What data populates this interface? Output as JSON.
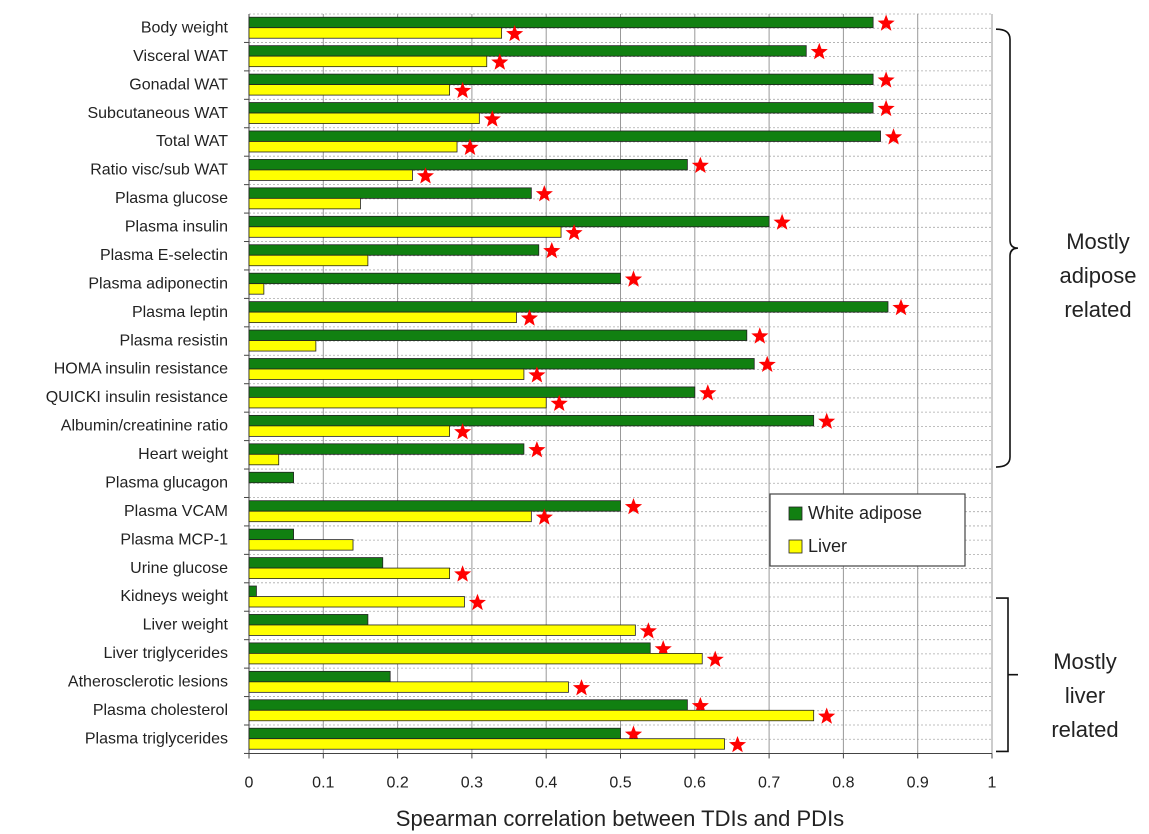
{
  "chart_data": {
    "type": "hbar",
    "xlabel": "Spearman correlation between TDIs and PDIs",
    "categories": [
      "Body weight",
      "Visceral WAT",
      "Gonadal WAT",
      "Subcutaneous WAT",
      "Total WAT",
      "Ratio visc/sub WAT",
      "Plasma glucose",
      "Plasma insulin",
      "Plasma E-selectin",
      "Plasma adiponectin",
      "Plasma leptin",
      "Plasma resistin",
      "HOMA insulin resistance",
      "QUICKI insulin resistance",
      "Albumin/creatinine ratio",
      "Heart weight",
      "Plasma glucagon",
      "Plasma VCAM",
      "Plasma MCP-1",
      "Urine glucose",
      "Kidneys weight",
      "Liver weight",
      "Liver triglycerides",
      "Atherosclerotic lesions",
      "Plasma cholesterol",
      "Plasma triglycerides"
    ],
    "series": [
      {
        "name": "White adipose",
        "color": "#118011",
        "values": [
          0.84,
          0.75,
          0.84,
          0.84,
          0.85,
          0.59,
          0.38,
          0.7,
          0.39,
          0.5,
          0.86,
          0.67,
          0.68,
          0.6,
          0.76,
          0.37,
          0.06,
          0.5,
          0.06,
          0.18,
          0.01,
          0.16,
          0.54,
          0.19,
          0.59,
          0.5
        ],
        "stars": [
          true,
          true,
          true,
          true,
          true,
          true,
          true,
          true,
          true,
          true,
          true,
          true,
          true,
          true,
          true,
          true,
          false,
          true,
          false,
          false,
          false,
          false,
          true,
          false,
          true,
          true
        ]
      },
      {
        "name": "Liver",
        "color": "#ffff00",
        "values": [
          0.34,
          0.32,
          0.27,
          0.31,
          0.28,
          0.22,
          0.15,
          0.42,
          0.16,
          0.02,
          0.36,
          0.09,
          0.37,
          0.4,
          0.27,
          0.04,
          0,
          0.38,
          0.14,
          0.27,
          0.29,
          0.52,
          0.61,
          0.43,
          0.76,
          0.64
        ],
        "stars": [
          true,
          true,
          true,
          true,
          true,
          true,
          false,
          true,
          false,
          false,
          true,
          false,
          true,
          true,
          true,
          false,
          false,
          true,
          false,
          true,
          true,
          true,
          true,
          true,
          true,
          true
        ]
      }
    ],
    "star_color": "#ff0000",
    "xlim": [
      0,
      1
    ],
    "xticks": [
      0,
      0.1,
      0.2,
      0.3,
      0.4,
      0.5,
      0.6,
      0.7,
      0.8,
      0.9,
      1
    ],
    "grid": true,
    "annotations": [
      [
        "Mostly",
        "adipose",
        "related"
      ],
      [
        "Mostly",
        "liver",
        "related"
      ]
    ]
  }
}
